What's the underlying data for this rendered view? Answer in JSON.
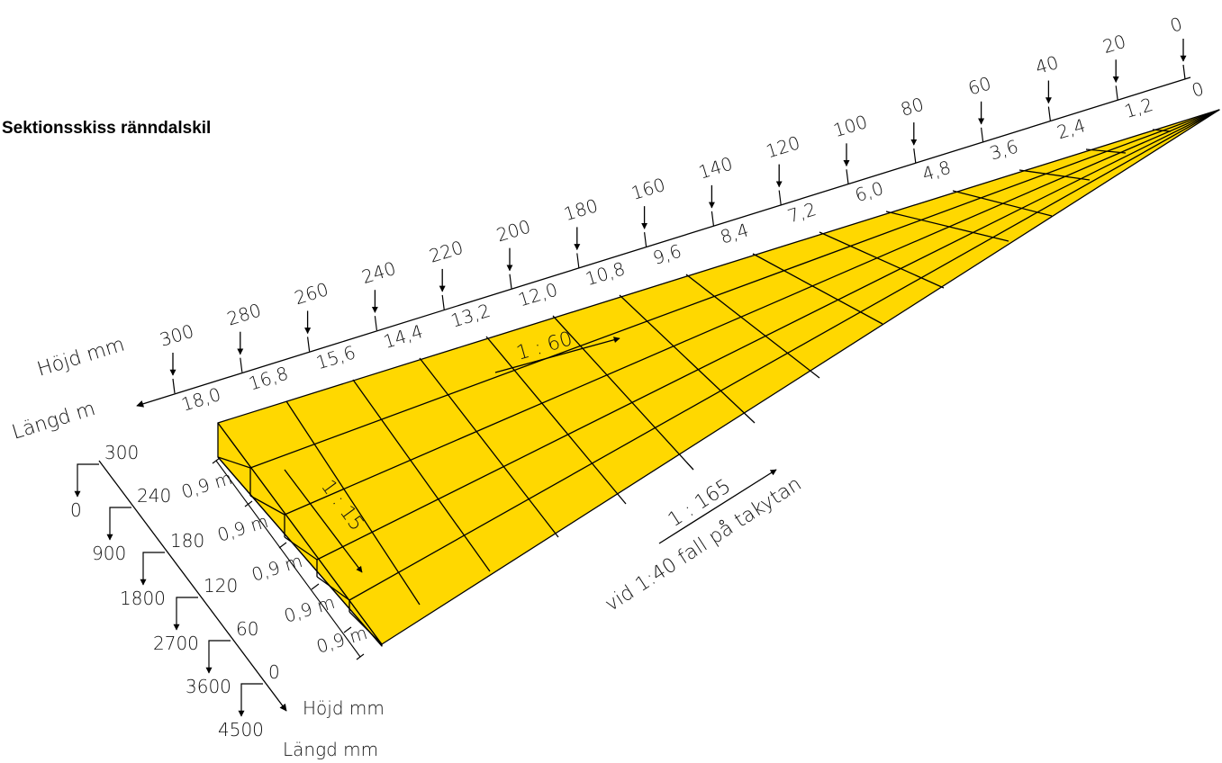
{
  "title": "Sektionsskiss ränndalskil",
  "colors": {
    "fill": "#FFD800",
    "stroke": "#000000"
  },
  "top_axis": {
    "height_label": "Höjd mm",
    "length_label": "Längd m",
    "heights": [
      "300",
      "280",
      "260",
      "240",
      "220",
      "200",
      "180",
      "160",
      "140",
      "120",
      "100",
      "80",
      "60",
      "40",
      "20",
      "0"
    ],
    "lengths": [
      "18,0",
      "16,8",
      "15,6",
      "14,4",
      "13,2",
      "12,0",
      "10,8",
      "9,6",
      "8,4",
      "7,2",
      "6,0",
      "4,8",
      "3,6",
      "2,4",
      "1,2",
      "0"
    ]
  },
  "side_axis": {
    "height_label": "Höjd mm",
    "length_label": "Längd mm",
    "heights": [
      "300",
      "240",
      "180",
      "120",
      "60",
      "0"
    ],
    "lengths": [
      "0",
      "900",
      "1800",
      "2700",
      "3600",
      "4500"
    ]
  },
  "widths": [
    "0,9 m",
    "0,9 m",
    "0,9 m",
    "0,9 m",
    "0,9 m"
  ],
  "slopes": {
    "top": "1 : 60",
    "side": "1 : 15",
    "main": "1 : 165",
    "main_note": "vid 1:40 fall på takytan"
  }
}
